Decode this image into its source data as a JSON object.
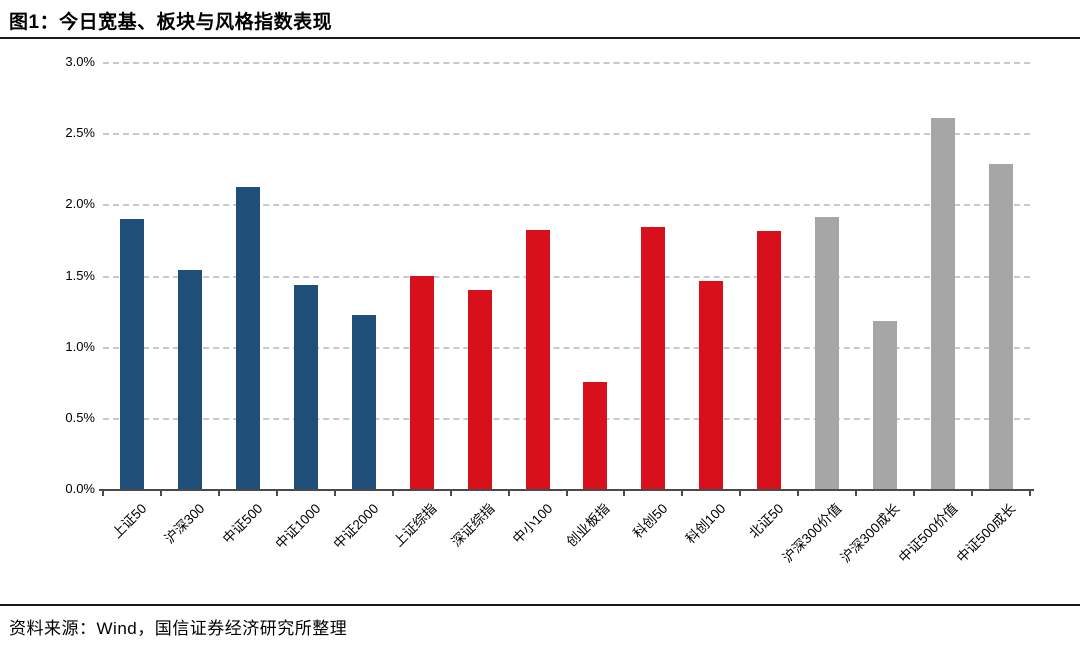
{
  "page": {
    "title": "图1：今日宽基、板块与风格指数表现",
    "source_note": "资料来源：Wind，国信证券经济研究所整理"
  },
  "chart_data": {
    "type": "bar",
    "title": "今日宽基、板块与风格指数表现",
    "xlabel": "",
    "ylabel": "",
    "ylim": [
      0,
      3.0
    ],
    "ytick_labels": [
      "3.0%",
      "2.5%",
      "2.0%",
      "1.5%",
      "1.0%",
      "0.5%",
      "0.0%"
    ],
    "grid": "horizontal-dashed",
    "legend_position": "none",
    "categories": [
      "上证50",
      "沪深300",
      "中证500",
      "中证1000",
      "中证2000",
      "上证综指",
      "深证综指",
      "中小100",
      "创业板指",
      "科创50",
      "科创100",
      "北证50",
      "沪深300价值",
      "沪深300成长",
      "中证500价值",
      "中证500成长"
    ],
    "values": [
      1.9,
      1.54,
      2.12,
      1.43,
      1.22,
      1.5,
      1.4,
      1.82,
      0.75,
      1.84,
      1.46,
      1.81,
      1.91,
      1.18,
      2.61,
      2.28
    ],
    "bar_groups": [
      "broad",
      "broad",
      "broad",
      "broad",
      "broad",
      "board",
      "board",
      "board",
      "board",
      "board",
      "board",
      "board",
      "style",
      "style",
      "style",
      "style"
    ],
    "group_colors": {
      "broad": "#1F4E79",
      "board": "#D7101B",
      "style": "#A6A6A6"
    }
  }
}
